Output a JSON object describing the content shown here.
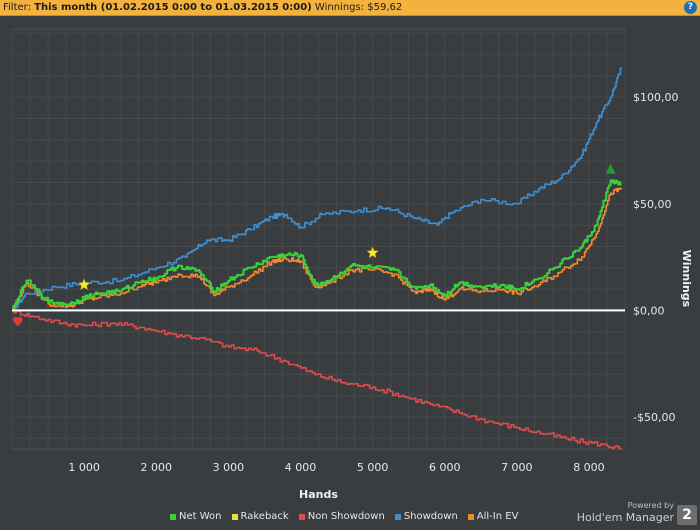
{
  "filter": {
    "prefix": "Filter:",
    "period": "This month (01.02.2015 0:00 to 01.03.2015 0:00)",
    "winnings": "Winnings: $59,62",
    "help_glyph": "?"
  },
  "chart_data": {
    "type": "line",
    "xlabel": "Hands",
    "ylabel": "Winnings",
    "xlim": [
      0,
      8500
    ],
    "ylim": [
      -65,
      132
    ],
    "x_ticks": [
      1000,
      2000,
      3000,
      4000,
      5000,
      6000,
      7000,
      8000
    ],
    "x_tick_labels": [
      "1 000",
      "2 000",
      "3 000",
      "4 000",
      "5 000",
      "6 000",
      "7 000",
      "8 000"
    ],
    "y_ticks": [
      -50,
      0,
      50,
      100
    ],
    "y_tick_labels": [
      "-$50,00",
      "$0,00",
      "$50,00",
      "$100,00"
    ],
    "grid": true,
    "legend_position": "bottom",
    "series": [
      {
        "name": "Showdown",
        "color": "#3d8fd1",
        "x": [
          0,
          200,
          600,
          1000,
          1500,
          2000,
          2400,
          2700,
          3000,
          3300,
          3600,
          3800,
          4000,
          4300,
          4800,
          5200,
          5600,
          5900,
          6100,
          6500,
          7000,
          7300,
          7600,
          7900,
          8100,
          8300,
          8450
        ],
        "y": [
          0,
          8,
          11,
          13,
          14,
          20,
          25,
          33,
          33,
          38,
          44,
          45,
          39,
          45,
          47,
          48,
          43,
          40,
          46,
          52,
          50,
          57,
          62,
          73,
          88,
          100,
          114
        ]
      },
      {
        "name": "Net Won",
        "color": "#3ad23a",
        "x": [
          0,
          200,
          500,
          800,
          1000,
          1200,
          1500,
          1800,
          2000,
          2300,
          2600,
          2800,
          3000,
          3300,
          3600,
          3800,
          4000,
          4200,
          4400,
          4700,
          5000,
          5300,
          5600,
          5800,
          6000,
          6200,
          6500,
          6800,
          7000,
          7300,
          7600,
          7900,
          8100,
          8300,
          8450
        ],
        "y": [
          0,
          14,
          4,
          3,
          6,
          8,
          9,
          14,
          15,
          21,
          18,
          9,
          14,
          20,
          25,
          26,
          26,
          12,
          14,
          21,
          20,
          19,
          10,
          12,
          7,
          13,
          11,
          12,
          10,
          15,
          22,
          30,
          40,
          61,
          59
        ]
      },
      {
        "name": "All-In EV",
        "color": "#ef8a2e",
        "x": [
          0,
          200,
          500,
          800,
          1000,
          1200,
          1500,
          1800,
          2000,
          2300,
          2600,
          2800,
          3000,
          3300,
          3600,
          3800,
          4000,
          4200,
          4400,
          4700,
          5000,
          5300,
          5600,
          5800,
          6000,
          6200,
          6500,
          6800,
          7000,
          7300,
          7600,
          7900,
          8100,
          8300,
          8450
        ],
        "y": [
          0,
          13,
          3,
          2,
          5,
          6,
          8,
          12,
          13,
          17,
          16,
          7,
          11,
          16,
          23,
          24,
          23,
          11,
          13,
          19,
          19,
          17,
          8,
          10,
          5,
          10,
          9,
          10,
          8,
          12,
          18,
          25,
          36,
          55,
          57
        ]
      },
      {
        "name": "Non Showdown",
        "color": "#e04b4b",
        "x": [
          0,
          300,
          700,
          1000,
          1400,
          1800,
          2200,
          2600,
          3000,
          3400,
          3800,
          4200,
          4600,
          5000,
          5400,
          5800,
          6200,
          6600,
          7000,
          7400,
          7800,
          8200,
          8450
        ],
        "y": [
          0,
          -3,
          -6,
          -7,
          -6,
          -8,
          -11,
          -13,
          -17,
          -19,
          -24,
          -30,
          -34,
          -36,
          -40,
          -44,
          -48,
          -52,
          -55,
          -58,
          -61,
          -63,
          -65
        ]
      },
      {
        "name": "Rakeback",
        "color": "#e8e23a",
        "x": [
          0,
          8450
        ],
        "y": [
          0,
          0
        ]
      }
    ],
    "markers": [
      {
        "type": "star",
        "x": 1000,
        "y": 12,
        "color": "#ffe82a"
      },
      {
        "type": "star",
        "x": 5000,
        "y": 27,
        "color": "#ffe82a"
      },
      {
        "type": "triangle-up",
        "x": 8300,
        "y": 66,
        "color": "#1e9e2e"
      },
      {
        "type": "heart",
        "x": 80,
        "y": -5,
        "color": "#e23a3a"
      }
    ]
  },
  "legend": [
    {
      "label": "Net Won",
      "color": "#3ad23a"
    },
    {
      "label": "Rakeback",
      "color": "#e8e23a"
    },
    {
      "label": "Non Showdown",
      "color": "#e04b4b"
    },
    {
      "label": "Showdown",
      "color": "#3d8fd1"
    },
    {
      "label": "All-In EV",
      "color": "#ef8a2e"
    }
  ],
  "branding": {
    "powered_by": "Powered by",
    "product": "Hold'em Manager",
    "logo_number": "2"
  }
}
